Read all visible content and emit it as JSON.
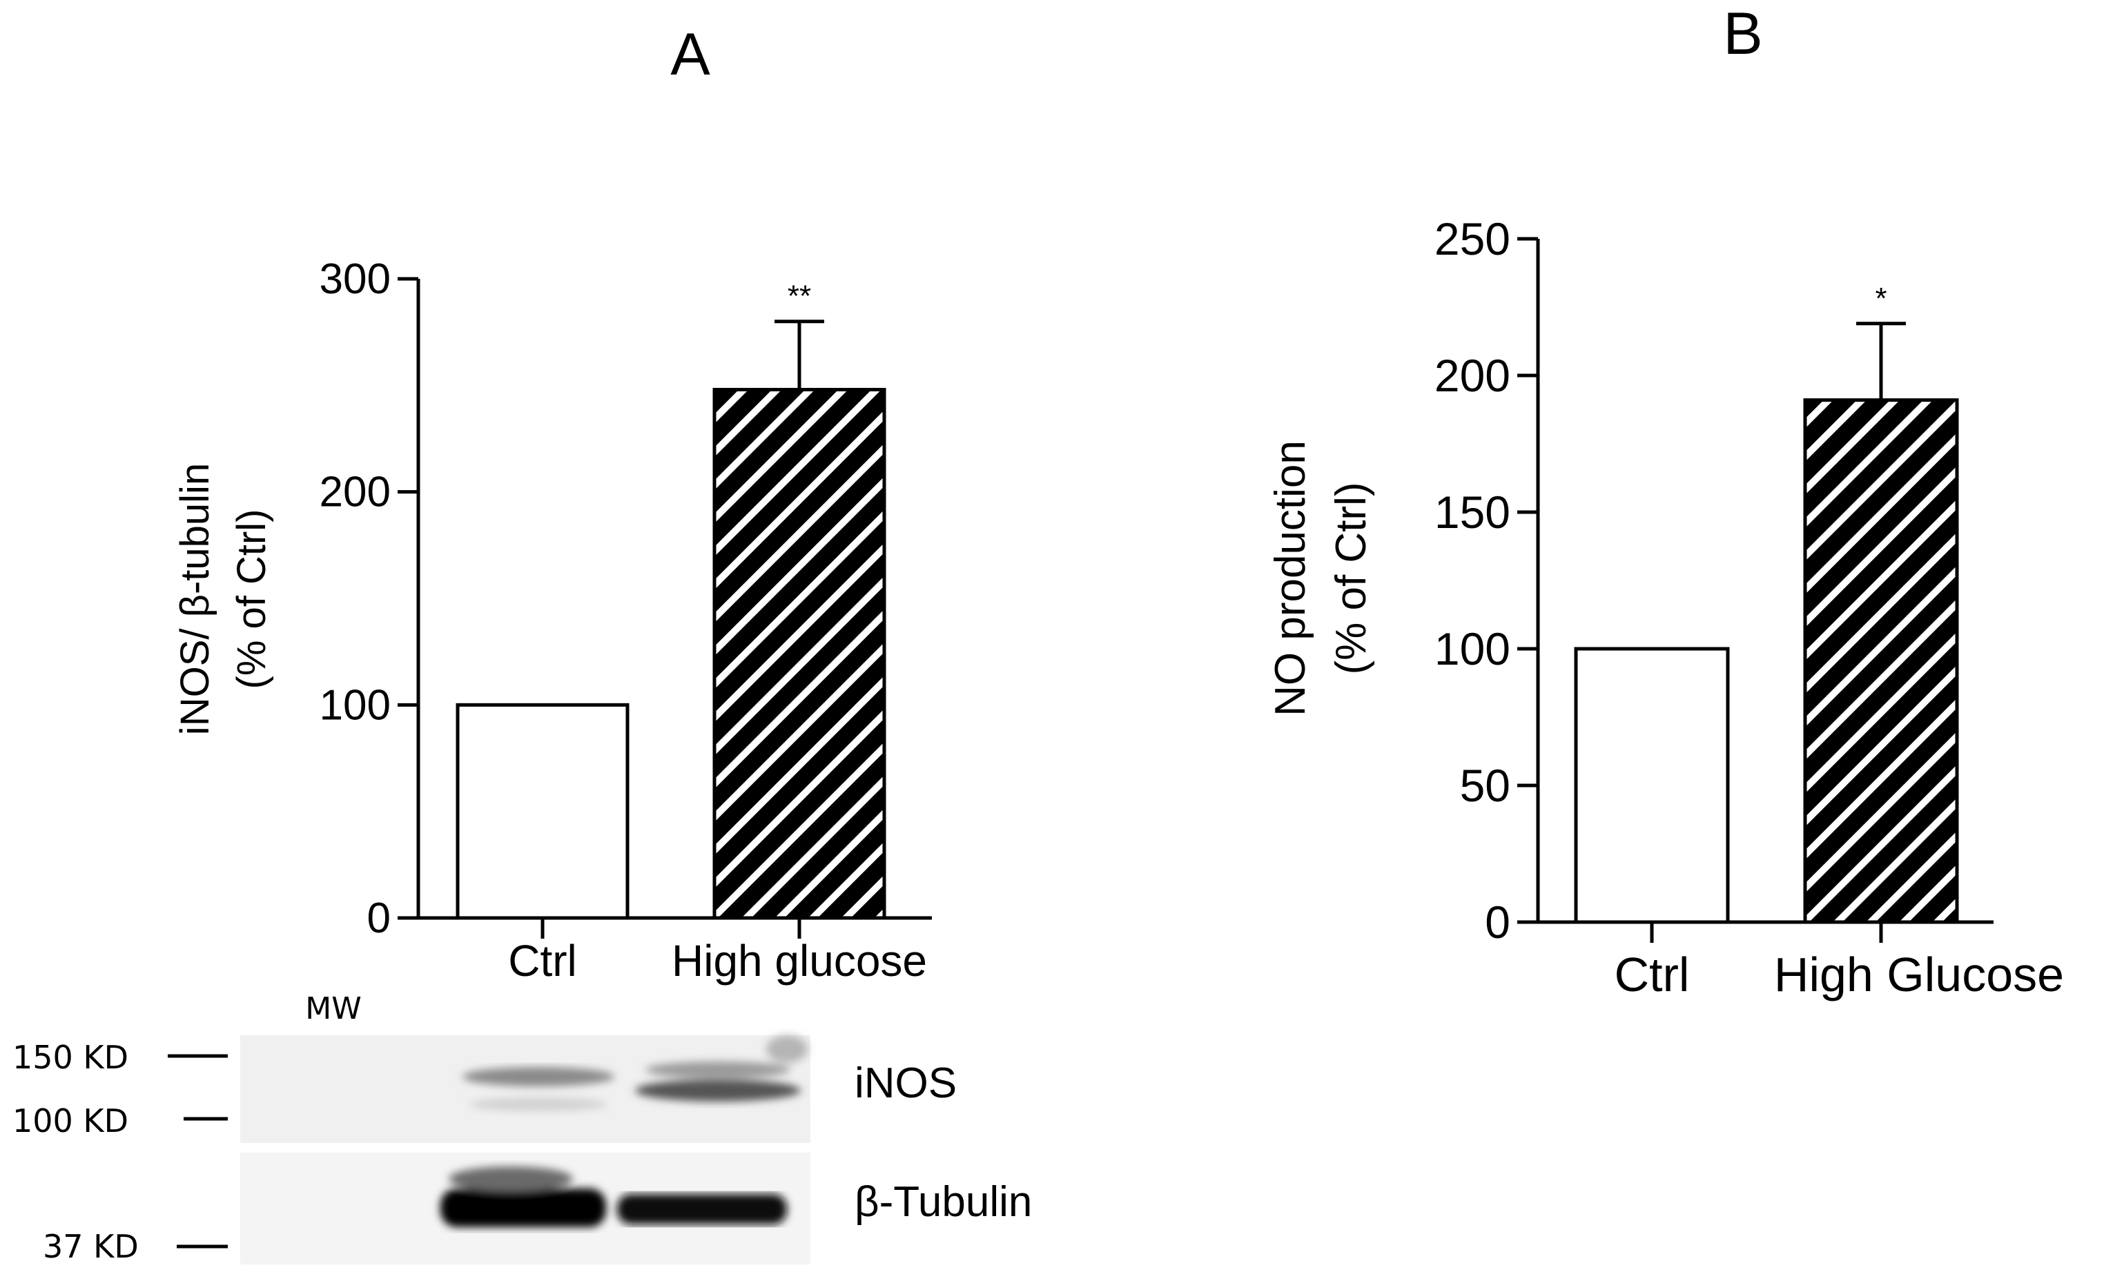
{
  "panels": {
    "a_letter": "A",
    "b_letter": "B"
  },
  "colors": {
    "bar_open": "#ffffff",
    "bar_hatch_bg": "#000000",
    "bar_hatch_line": "#ffffff",
    "axis": "#000000"
  },
  "chart_data": [
    {
      "type": "bar",
      "panel": "A",
      "categories": [
        "Ctrl",
        "High glucose"
      ],
      "values": [
        100,
        248
      ],
      "error_upper": [
        null,
        280
      ],
      "significance": [
        "",
        "**"
      ],
      "fill": [
        "open",
        "hatched"
      ],
      "ylabel_line1": "iNOS/ β-tubulin",
      "ylabel_line2": "(% of Ctrl)",
      "ylim": [
        0,
        300
      ],
      "yticks": [
        "0",
        "100",
        "200",
        "300"
      ]
    },
    {
      "type": "bar",
      "panel": "B",
      "categories": [
        "Ctrl",
        "High Glucose"
      ],
      "values": [
        100,
        191
      ],
      "error_upper": [
        null,
        219
      ],
      "significance": [
        "",
        "*"
      ],
      "fill": [
        "open",
        "hatched"
      ],
      "ylabel_line1": "NO production",
      "ylabel_line2": "(% of Ctrl)",
      "ylim": [
        0,
        250
      ],
      "yticks": [
        "0",
        "50",
        "100",
        "150",
        "200",
        "250"
      ]
    }
  ],
  "western_blot": {
    "mw_header": "MW",
    "markers": [
      "150 KD",
      "100 KD",
      "37 KD"
    ],
    "bands": [
      "iNOS",
      "β-Tubulin"
    ]
  }
}
